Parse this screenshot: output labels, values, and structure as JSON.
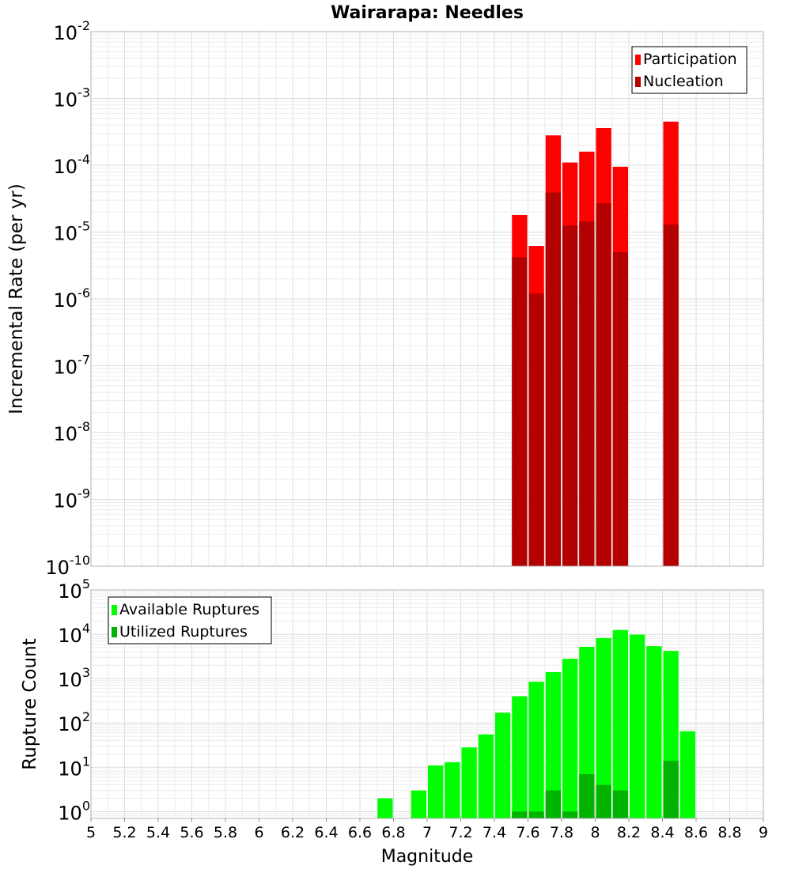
{
  "chart_data": {
    "title": "Wairarapa: Needles",
    "xlabel": "Magnitude",
    "xlim": [
      5,
      9
    ],
    "x_ticks": [
      "5",
      "5.2",
      "5.4",
      "5.6",
      "5.8",
      "6",
      "6.2",
      "6.4",
      "6.6",
      "6.8",
      "7",
      "7.2",
      "7.4",
      "7.6",
      "7.8",
      "8",
      "8.2",
      "8.4",
      "8.6",
      "8.8",
      "9"
    ],
    "panels": [
      {
        "type": "bar",
        "scale": "log",
        "ylabel": "Incremental Rate (per yr)",
        "ylim": [
          1e-10,
          0.01
        ],
        "y_tick_mantissa": "10",
        "y_tick_exponents": [
          "-10",
          "-9",
          "-8",
          "-7",
          "-6",
          "-5",
          "-4",
          "-3",
          "-2"
        ],
        "legend_position": "top-right",
        "series": [
          {
            "name": "Participation",
            "color": "#ff0000",
            "x": [
              7.55,
              7.65,
              7.75,
              7.85,
              7.95,
              8.05,
              8.15,
              8.45
            ],
            "values": [
              1.8e-05,
              6.2e-06,
              0.00028,
              0.00011,
              0.00016,
              0.00036,
              9.5e-05,
              0.00045
            ]
          },
          {
            "name": "Nucleation",
            "color": "#b30000",
            "x": [
              7.55,
              7.65,
              7.75,
              7.85,
              7.95,
              8.05,
              8.15,
              8.45
            ],
            "values": [
              4.2e-06,
              1.2e-06,
              3.9e-05,
              1.25e-05,
              1.45e-05,
              2.7e-05,
              5e-06,
              1.3e-05
            ]
          }
        ]
      },
      {
        "type": "bar",
        "scale": "log",
        "ylabel": "Rupture Count",
        "ylim": [
          0.7,
          100000
        ],
        "y_tick_mantissa": "10",
        "y_tick_exponents": [
          "0",
          "1",
          "2",
          "3",
          "4",
          "5"
        ],
        "legend_position": "top-left",
        "series": [
          {
            "name": "Available Ruptures",
            "color": "#00ff00",
            "x": [
              6.75,
              6.95,
              7.05,
              7.15,
              7.25,
              7.35,
              7.45,
              7.55,
              7.65,
              7.75,
              7.85,
              7.95,
              8.05,
              8.15,
              8.25,
              8.35,
              8.45,
              8.55
            ],
            "values": [
              2,
              3,
              11,
              13,
              28,
              55,
              170,
              400,
              850,
              1400,
              2800,
              5200,
              8200,
              12500,
              9800,
              5400,
              4200,
              65
            ]
          },
          {
            "name": "Utilized Ruptures",
            "color": "#00b300",
            "x": [
              7.55,
              7.65,
              7.75,
              7.85,
              7.95,
              8.05,
              8.15,
              8.45
            ],
            "values": [
              1,
              1,
              3,
              1,
              7,
              4,
              3,
              14
            ]
          }
        ]
      }
    ]
  }
}
